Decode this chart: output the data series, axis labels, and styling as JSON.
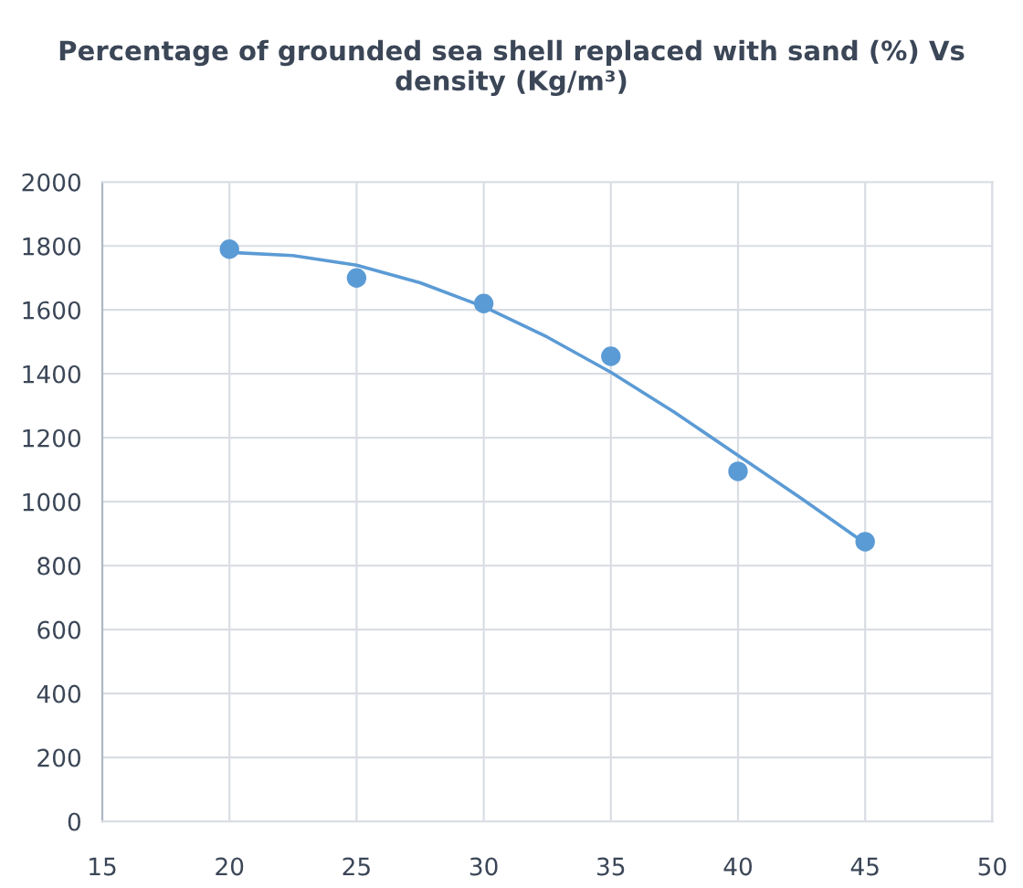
{
  "chart_data": {
    "type": "scatter",
    "title": "Percentage of grounded sea shell replaced with sand (%) Vs density (Kg/m³)",
    "x": [
      20,
      25,
      30,
      35,
      40,
      45
    ],
    "series": [
      {
        "color": "#5b9bd5",
        "marker": "circle",
        "values": [
          1790,
          1700,
          1620,
          1455,
          1095,
          875
        ]
      },
      {
        "type": "line",
        "color": "#5b9bd5",
        "marker": "none",
        "x": [
          20,
          22.5,
          25,
          27.5,
          30,
          32.5,
          35,
          37.5,
          40,
          42.5,
          45
        ],
        "values": [
          1780,
          1770,
          1740,
          1685,
          1610,
          1515,
          1405,
          1280,
          1145,
          1010,
          870
        ]
      }
    ],
    "xlim": [
      15,
      50
    ],
    "xticks": [
      15,
      20,
      25,
      30,
      35,
      40,
      45,
      50
    ],
    "ylim": [
      0,
      2000
    ],
    "yticks": [
      0,
      200,
      400,
      600,
      800,
      1000,
      1200,
      1400,
      1600,
      1800,
      2000
    ],
    "grid": true,
    "legend": false
  }
}
